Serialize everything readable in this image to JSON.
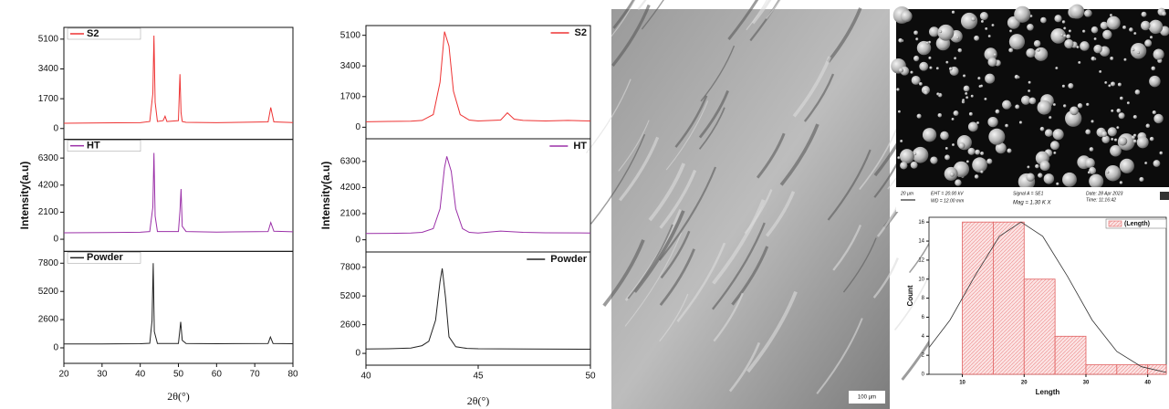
{
  "chart_data": [
    {
      "type": "line",
      "xlabel": "2θ(°)",
      "ylabel": "Intensity(a.u)",
      "xlim": [
        20,
        80
      ],
      "xticks": [
        20,
        30,
        40,
        50,
        60,
        70,
        80
      ],
      "legend": "upper left",
      "panels": [
        {
          "name": "S2",
          "color": "#ee3333",
          "ylim": [
            -620,
            5770
          ],
          "yticks": [
            0,
            1700,
            3400,
            5100
          ],
          "x": [
            20,
            30,
            40,
            42.5,
            43.3,
            43.6,
            43.9,
            44.5,
            46,
            46.5,
            47,
            50,
            50.4,
            50.7,
            51,
            52,
            60,
            73.5,
            74.2,
            75,
            80
          ],
          "values": [
            300,
            320,
            330,
            400,
            2000,
            5300,
            1500,
            400,
            450,
            700,
            400,
            450,
            3100,
            900,
            400,
            350,
            330,
            380,
            1200,
            380,
            340
          ]
        },
        {
          "name": "HT",
          "color": "#9b30a8",
          "ylim": [
            -940,
            7750
          ],
          "yticks": [
            0,
            2100,
            4200,
            6300
          ],
          "x": [
            20,
            30,
            40,
            42.5,
            43.3,
            43.6,
            43.9,
            44.5,
            50,
            50.4,
            50.7,
            51,
            52,
            60,
            73.5,
            74.2,
            75,
            80
          ],
          "values": [
            500,
            520,
            540,
            600,
            2500,
            6700,
            1800,
            600,
            600,
            2200,
            3900,
            1000,
            600,
            560,
            600,
            1300,
            620,
            580
          ]
        },
        {
          "name": "Powder",
          "color": "#222222",
          "ylim": [
            -1430,
            8890
          ],
          "yticks": [
            0,
            2600,
            5200,
            7800
          ],
          "x": [
            20,
            30,
            40,
            42.5,
            43.1,
            43.4,
            43.7,
            44.5,
            50,
            50.3,
            50.6,
            51,
            52,
            60,
            73.5,
            74.1,
            74.8,
            80
          ],
          "values": [
            350,
            360,
            380,
            420,
            2500,
            7800,
            1500,
            400,
            400,
            1400,
            2400,
            700,
            400,
            380,
            400,
            1000,
            400,
            380
          ]
        }
      ]
    },
    {
      "type": "line",
      "xlabel": "2θ(°)",
      "ylabel": "Intensity(a.u)",
      "xlim": [
        40,
        50
      ],
      "xticks": [
        40,
        45,
        50
      ],
      "legend": "upper right",
      "panels": [
        {
          "name": "S2",
          "color": "#ee3333",
          "ylim": [
            -640,
            5640
          ],
          "yticks": [
            0,
            1700,
            3400,
            5100
          ],
          "x": [
            40,
            41,
            42,
            42.5,
            43,
            43.3,
            43.5,
            43.7,
            43.9,
            44.2,
            44.6,
            45,
            46,
            46.3,
            46.6,
            47,
            48,
            49,
            50
          ],
          "values": [
            300,
            320,
            330,
            380,
            700,
            2500,
            5300,
            4500,
            2000,
            700,
            400,
            350,
            400,
            800,
            450,
            380,
            350,
            380,
            350
          ]
        },
        {
          "name": "HT",
          "color": "#9b30a8",
          "ylim": [
            -980,
            8120
          ],
          "yticks": [
            0,
            2100,
            4200,
            6300
          ],
          "x": [
            40,
            41,
            42,
            42.5,
            43,
            43.3,
            43.5,
            43.6,
            43.8,
            44,
            44.3,
            44.6,
            45,
            46,
            47,
            48,
            50
          ],
          "values": [
            500,
            520,
            540,
            600,
            900,
            2500,
            5800,
            6700,
            5500,
            2500,
            900,
            600,
            550,
            700,
            600,
            560,
            550
          ]
        },
        {
          "name": "Powder",
          "color": "#222222",
          "ylim": [
            -1070,
            9190
          ],
          "yticks": [
            0,
            2600,
            5200,
            7800
          ],
          "x": [
            40,
            41,
            42,
            42.5,
            42.8,
            43.1,
            43.3,
            43.4,
            43.55,
            43.7,
            44,
            44.5,
            45,
            47,
            50
          ],
          "values": [
            400,
            420,
            480,
            700,
            1100,
            3000,
            6500,
            7700,
            5000,
            1500,
            600,
            450,
            420,
            400,
            380
          ]
        }
      ]
    },
    {
      "type": "histogram",
      "xlabel": "Length",
      "ylabel": "Count",
      "legend": "upper right",
      "series_name": "(Length)",
      "color": "#e06060",
      "bins": [
        10,
        15,
        20,
        25,
        30,
        35,
        40,
        45
      ],
      "values": [
        16,
        16,
        10,
        4,
        1,
        1,
        1
      ],
      "xlim": [
        4.6,
        43
      ],
      "xticks": [
        10,
        20,
        30,
        40
      ],
      "ylim": [
        0,
        16.5
      ],
      "yticks": [
        0,
        2,
        4,
        6,
        8,
        10,
        12,
        14,
        16
      ],
      "fit": {
        "x": [
          4.6,
          8,
          12,
          16,
          19.5,
          23,
          27,
          31,
          35,
          39,
          43
        ],
        "values": [
          2.8,
          5.7,
          10.3,
          14.5,
          16,
          14.5,
          10.3,
          5.7,
          2.4,
          0.8,
          0.2
        ]
      }
    }
  ],
  "images": {
    "optical": {
      "scale": "100 µm"
    },
    "sem": {
      "scale": "20 µm",
      "eht": "EHT = 20.00 kV",
      "wd": "WD = 12.00 mm",
      "signal": "Signal A = SE1",
      "mag": "Mag =   1.30 K X",
      "date": "Date: 28 Apr 2023",
      "time": "Time: 11:16:42"
    }
  }
}
